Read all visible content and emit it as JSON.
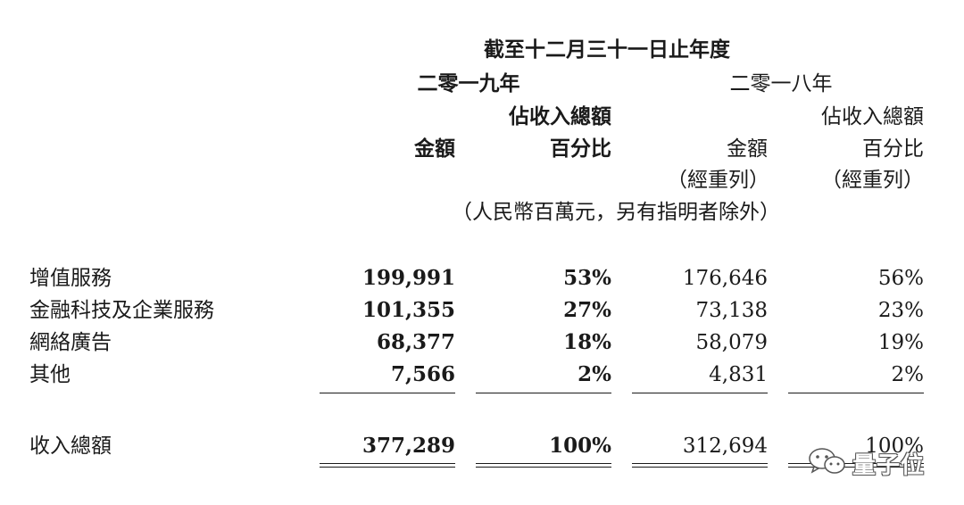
{
  "header": {
    "period": "截至十二月三十一日止年度",
    "year_2019": "二零一九年",
    "year_2018": "二零一八年",
    "pct_label_top": "佔收入總額",
    "amount_label": "金額",
    "pct_label_bottom": "百分比",
    "restated": "（經重列）",
    "unit_note": "（人民幣百萬元，另有指明者除外）"
  },
  "rows": [
    {
      "label": "增值服務",
      "amt_2019": "199,991",
      "pct_2019": "53%",
      "amt_2018": "176,646",
      "pct_2018": "56%"
    },
    {
      "label": "金融科技及企業服務",
      "amt_2019": "101,355",
      "pct_2019": "27%",
      "amt_2018": "73,138",
      "pct_2018": "23%"
    },
    {
      "label": "網絡廣告",
      "amt_2019": "68,377",
      "pct_2019": "18%",
      "amt_2018": "58,079",
      "pct_2018": "19%"
    },
    {
      "label": "其他",
      "amt_2019": "7,566",
      "pct_2019": "2%",
      "amt_2018": "4,831",
      "pct_2018": "2%"
    }
  ],
  "total": {
    "label": "收入總額",
    "amt_2019": "377,289",
    "pct_2019": "100%",
    "amt_2018": "312,694",
    "pct_2018": "100%"
  },
  "watermark": {
    "text": "量子位",
    "icon": "wechat-icon"
  }
}
